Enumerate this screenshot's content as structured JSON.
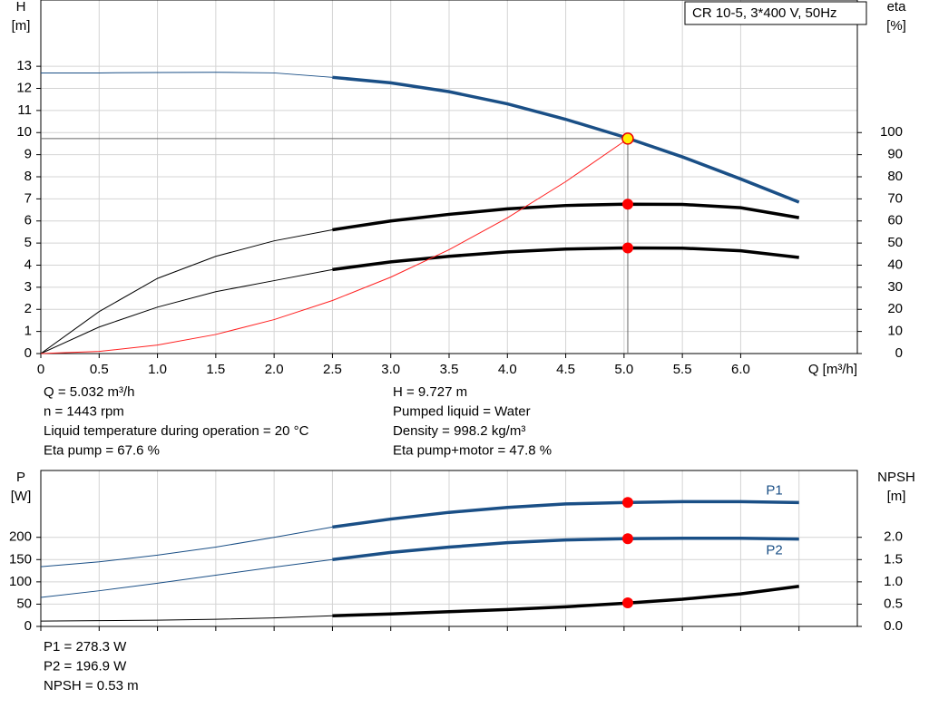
{
  "chart_data": [
    {
      "type": "line",
      "legend": "CR 10-5, 3*400 V, 50Hz",
      "ylabel": [
        "H",
        "[m]"
      ],
      "y2label": [
        "eta",
        "[%]"
      ],
      "xlabel": "Q [m³/h]",
      "xlim": [
        0,
        7
      ],
      "xticks": [
        0,
        0.5,
        {
          "value": 1,
          "label": "1.0"
        },
        1.5,
        {
          "value": 2,
          "label": "2.0"
        },
        2.5,
        {
          "value": 3,
          "label": "3.0"
        },
        3.5,
        {
          "value": 4,
          "label": "4.0"
        },
        4.5,
        {
          "value": 5,
          "label": "5.0"
        },
        5.5,
        {
          "value": 6,
          "label": "6.0"
        }
      ],
      "ylim": [
        0,
        16
      ],
      "yticks": [
        0,
        1,
        2,
        3,
        4,
        5,
        6,
        7,
        8,
        9,
        10,
        11,
        12,
        13
      ],
      "y2lim": [
        0,
        160
      ],
      "y2ticks": [
        0,
        10,
        20,
        30,
        40,
        50,
        60,
        70,
        80,
        90,
        100
      ],
      "grid": true,
      "thick_from": 2.5,
      "x": [
        0,
        0.5,
        1,
        1.5,
        2,
        2.5,
        3,
        3.5,
        4,
        4.5,
        5,
        5.5,
        6,
        6.5
      ],
      "series": [
        {
          "color": "#1a4f86",
          "values": [
            12.7,
            12.7,
            12.72,
            12.73,
            12.7,
            12.5,
            12.25,
            11.85,
            11.3,
            10.6,
            9.8,
            8.9,
            7.9,
            6.85
          ]
        },
        {
          "color": "#000000",
          "axis": "y2",
          "values": [
            0,
            19,
            34,
            44,
            51,
            56,
            60,
            63,
            65.5,
            67,
            67.6,
            67.5,
            66,
            61.5
          ]
        },
        {
          "color": "#000000",
          "axis": "y2",
          "values": [
            0,
            12,
            21,
            28,
            33,
            38,
            41.5,
            44,
            46,
            47.3,
            47.8,
            47.7,
            46.5,
            43.5
          ]
        },
        {
          "color": "#ff2020",
          "x": [
            0,
            0.5,
            1,
            1.5,
            2,
            2.5,
            3,
            3.5,
            4,
            4.5,
            5,
            5.032
          ],
          "values": [
            0,
            0.096,
            0.384,
            0.864,
            1.536,
            2.4,
            3.456,
            4.7,
            6.14,
            7.78,
            9.6,
            9.727
          ]
        }
      ],
      "operating_point": {
        "x": 5.032,
        "y": 9.727,
        "color": "#ffee00"
      },
      "markers": [
        {
          "x": 5.032,
          "y": 67.6,
          "axis": "y2",
          "color": "#ff0000"
        },
        {
          "x": 5.032,
          "y": 47.8,
          "axis": "y2",
          "color": "#ff0000"
        }
      ],
      "info": [
        [
          "Q = 5.032 m³/h",
          "n = 1443 rpm",
          "Liquid temperature during operation = 20 °C",
          "Eta pump = 67.6 %"
        ],
        [
          "H = 9.727 m",
          "Pumped liquid = Water",
          "Density = 998.2 kg/m³",
          "Eta pump+motor = 47.8 %"
        ]
      ]
    },
    {
      "type": "line",
      "ylabel": [
        "P",
        "[W]"
      ],
      "y2label": [
        "NPSH",
        "[m]"
      ],
      "xlim": [
        0,
        7
      ],
      "xticks": [
        0,
        0.5,
        1,
        1.5,
        2,
        2.5,
        3,
        3.5,
        4,
        4.5,
        5,
        5.5,
        6,
        6.5
      ],
      "show_xtick_labels": false,
      "ylim": [
        0,
        350
      ],
      "yticks": [
        0,
        50,
        100,
        150,
        200
      ],
      "y2lim": [
        0,
        3.5
      ],
      "y2ticks": [
        {
          "value": 0,
          "label": "0.0"
        },
        0.5,
        {
          "value": 1,
          "label": "1.0"
        },
        1.5,
        {
          "value": 2,
          "label": "2.0"
        }
      ],
      "grid": true,
      "thick_from": 2.5,
      "x": [
        0,
        0.5,
        1,
        1.5,
        2,
        2.5,
        3,
        3.5,
        4,
        4.5,
        5,
        5.5,
        6,
        6.5
      ],
      "series": [
        {
          "name": "P1",
          "color": "#1a4f86",
          "values": [
            134,
            145,
            160,
            178,
            200,
            223,
            241,
            256,
            267,
            275,
            278,
            280,
            280,
            278
          ]
        },
        {
          "name": "P2",
          "color": "#1a4f86",
          "values": [
            65,
            80,
            97,
            115,
            133,
            150,
            166,
            178,
            188,
            194,
            197,
            198,
            198,
            196
          ]
        },
        {
          "color": "#000000",
          "axis": "y2",
          "values": [
            0.12,
            0.13,
            0.14,
            0.16,
            0.19,
            0.24,
            0.28,
            0.33,
            0.38,
            0.44,
            0.52,
            0.61,
            0.73,
            0.9
          ]
        }
      ],
      "markers": [
        {
          "x": 5.032,
          "y": 278.3,
          "color": "#ff0000"
        },
        {
          "x": 5.032,
          "y": 196.9,
          "color": "#ff0000"
        },
        {
          "x": 5.032,
          "y": 0.53,
          "axis": "y2",
          "color": "#ff0000"
        }
      ],
      "info": [
        "P1 = 278.3 W",
        "P2 = 196.9 W",
        "NPSH = 0.53 m"
      ]
    }
  ]
}
